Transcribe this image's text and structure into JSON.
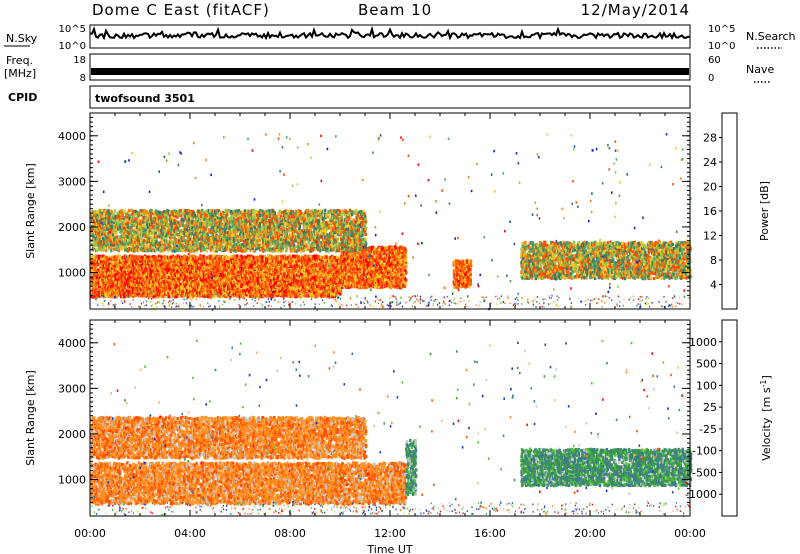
{
  "header": {
    "station": "Dome C East (fitACF)",
    "beam": "Beam 10",
    "date": "12/May/2014"
  },
  "top_panels": {
    "nsky_label": "N.Sky",
    "nsky_ticks": [
      "10^5",
      "10^0"
    ],
    "nsearch_label": "N.Search",
    "nsearch_ticks": [
      "10^5",
      "10^0"
    ],
    "freq_label": "Freq.",
    "freq_unit": "[MHz]",
    "freq_ticks": [
      "18",
      "8"
    ],
    "nave_label": "Nave",
    "nave_ticks": [
      "60",
      "0"
    ],
    "cpid_label": "CPID",
    "cpid_value": "twofsound 3501"
  },
  "chart_data": [
    {
      "type": "heatmap",
      "name": "power",
      "ylabel": "Slant Range [km]",
      "xlabel": "",
      "xlim": [
        "00:00",
        "24:00"
      ],
      "ylim": [
        200,
        4500
      ],
      "x_ticks": [
        "00:00",
        "04:00",
        "08:00",
        "12:00",
        "16:00",
        "20:00",
        "00:00"
      ],
      "y_ticks": [
        "1000",
        "2000",
        "3000",
        "4000"
      ],
      "colorbar": {
        "label": "Power [dB]",
        "ticks": [
          "28",
          "24",
          "20",
          "16",
          "12",
          "8",
          "4"
        ],
        "range": [
          0,
          30
        ],
        "colors": [
          "#0a1ee6",
          "#1e50b4",
          "#3c7866",
          "#50a064",
          "#9bc84b",
          "#f0c828",
          "#f58214",
          "#ff4b00",
          "#ff0000"
        ]
      },
      "regions": [
        {
          "t0": 0.0,
          "t1": 10.0,
          "r0": 500,
          "r1": 1400,
          "level": "high"
        },
        {
          "t0": 10.0,
          "t1": 12.6,
          "r0": 700,
          "r1": 1600,
          "level": "high"
        },
        {
          "t0": 0.0,
          "t1": 11.0,
          "r0": 1500,
          "r1": 2400,
          "level": "mid"
        },
        {
          "t0": 14.5,
          "t1": 15.2,
          "r0": 700,
          "r1": 1300,
          "level": "high"
        },
        {
          "t0": 17.2,
          "t1": 24.0,
          "r0": 900,
          "r1": 1700,
          "level": "mid"
        }
      ]
    },
    {
      "type": "heatmap",
      "name": "velocity",
      "ylabel": "Slant Range [km]",
      "xlabel": "Time UT",
      "xlim": [
        "00:00",
        "24:00"
      ],
      "ylim": [
        200,
        4500
      ],
      "x_ticks": [
        "00:00",
        "04:00",
        "08:00",
        "12:00",
        "16:00",
        "20:00",
        "00:00"
      ],
      "y_ticks": [
        "1000",
        "2000",
        "3000",
        "4000"
      ],
      "colorbar": {
        "label_main": "Velocity",
        "label_unit": "[m s",
        "label_exp": "-1",
        "label_close": "]",
        "ticks": [
          "1000",
          "500",
          "100",
          "25",
          "-25",
          "-100",
          "-500",
          "-1000"
        ],
        "range": [
          -1200,
          1200
        ],
        "colors": [
          "#ff0000",
          "#ff5000",
          "#ff8c1e",
          "#ffb464",
          "#c8c8c8",
          "#50c832",
          "#3c9650",
          "#3c7896",
          "#283cb4",
          "#1432c8"
        ]
      },
      "regions": [
        {
          "t0": 0.0,
          "t1": 12.6,
          "r0": 500,
          "r1": 1400,
          "level": "negative"
        },
        {
          "t0": 0.0,
          "t1": 11.0,
          "r0": 1500,
          "r1": 2400,
          "level": "negative"
        },
        {
          "t0": 12.6,
          "t1": 13.0,
          "r0": 700,
          "r1": 1900,
          "level": "positive"
        },
        {
          "t0": 17.2,
          "t1": 24.0,
          "r0": 900,
          "r1": 1700,
          "level": "positive"
        }
      ]
    }
  ]
}
